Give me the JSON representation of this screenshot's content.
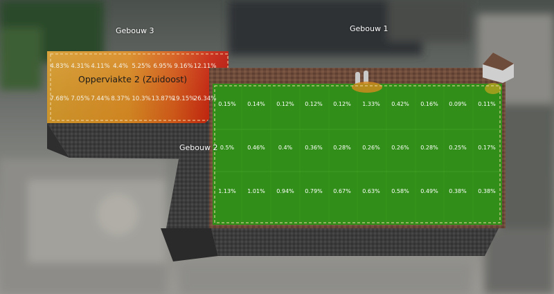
{
  "buildings": {
    "gebouw_1": "Gebouw 1",
    "gebouw_2": "Gebouw 2",
    "gebouw_3": "Gebouw 3"
  },
  "surface2": {
    "title": "Opperviakte 2 (Zuidoost)",
    "row1": [
      "4.83%",
      "4.31%",
      "4.11%",
      "4.4%",
      "5.25%",
      "6.95%",
      "9.16%",
      "12.11%"
    ],
    "row2": [
      "7.68%",
      "7.05%",
      "7.44%",
      "8.37%",
      "10.3%",
      "13.87%",
      "19.15%",
      "26.34%"
    ]
  },
  "surface1": {
    "row1": [
      "0.15%",
      "0.14%",
      "0.12%",
      "0.12%",
      "0.12%",
      "1.33%",
      "0.42%",
      "0.16%",
      "0.09%",
      "0.11%"
    ],
    "row2": [
      "0.5%",
      "0.46%",
      "0.4%",
      "0.36%",
      "0.28%",
      "0.26%",
      "0.26%",
      "0.28%",
      "0.25%",
      "0.17%"
    ],
    "row3": [
      "1.13%",
      "1.01%",
      "0.94%",
      "0.79%",
      "0.67%",
      "0.63%",
      "0.58%",
      "0.49%",
      "0.38%",
      "0.38%"
    ]
  },
  "colors": {
    "heat_low": "#d9a02a",
    "heat_high": "#cc1c10",
    "green_roof": "#2f8a16",
    "brick": "#6b4a3a",
    "wall": "#3a3a3a",
    "dash": "#f2d9a8"
  }
}
